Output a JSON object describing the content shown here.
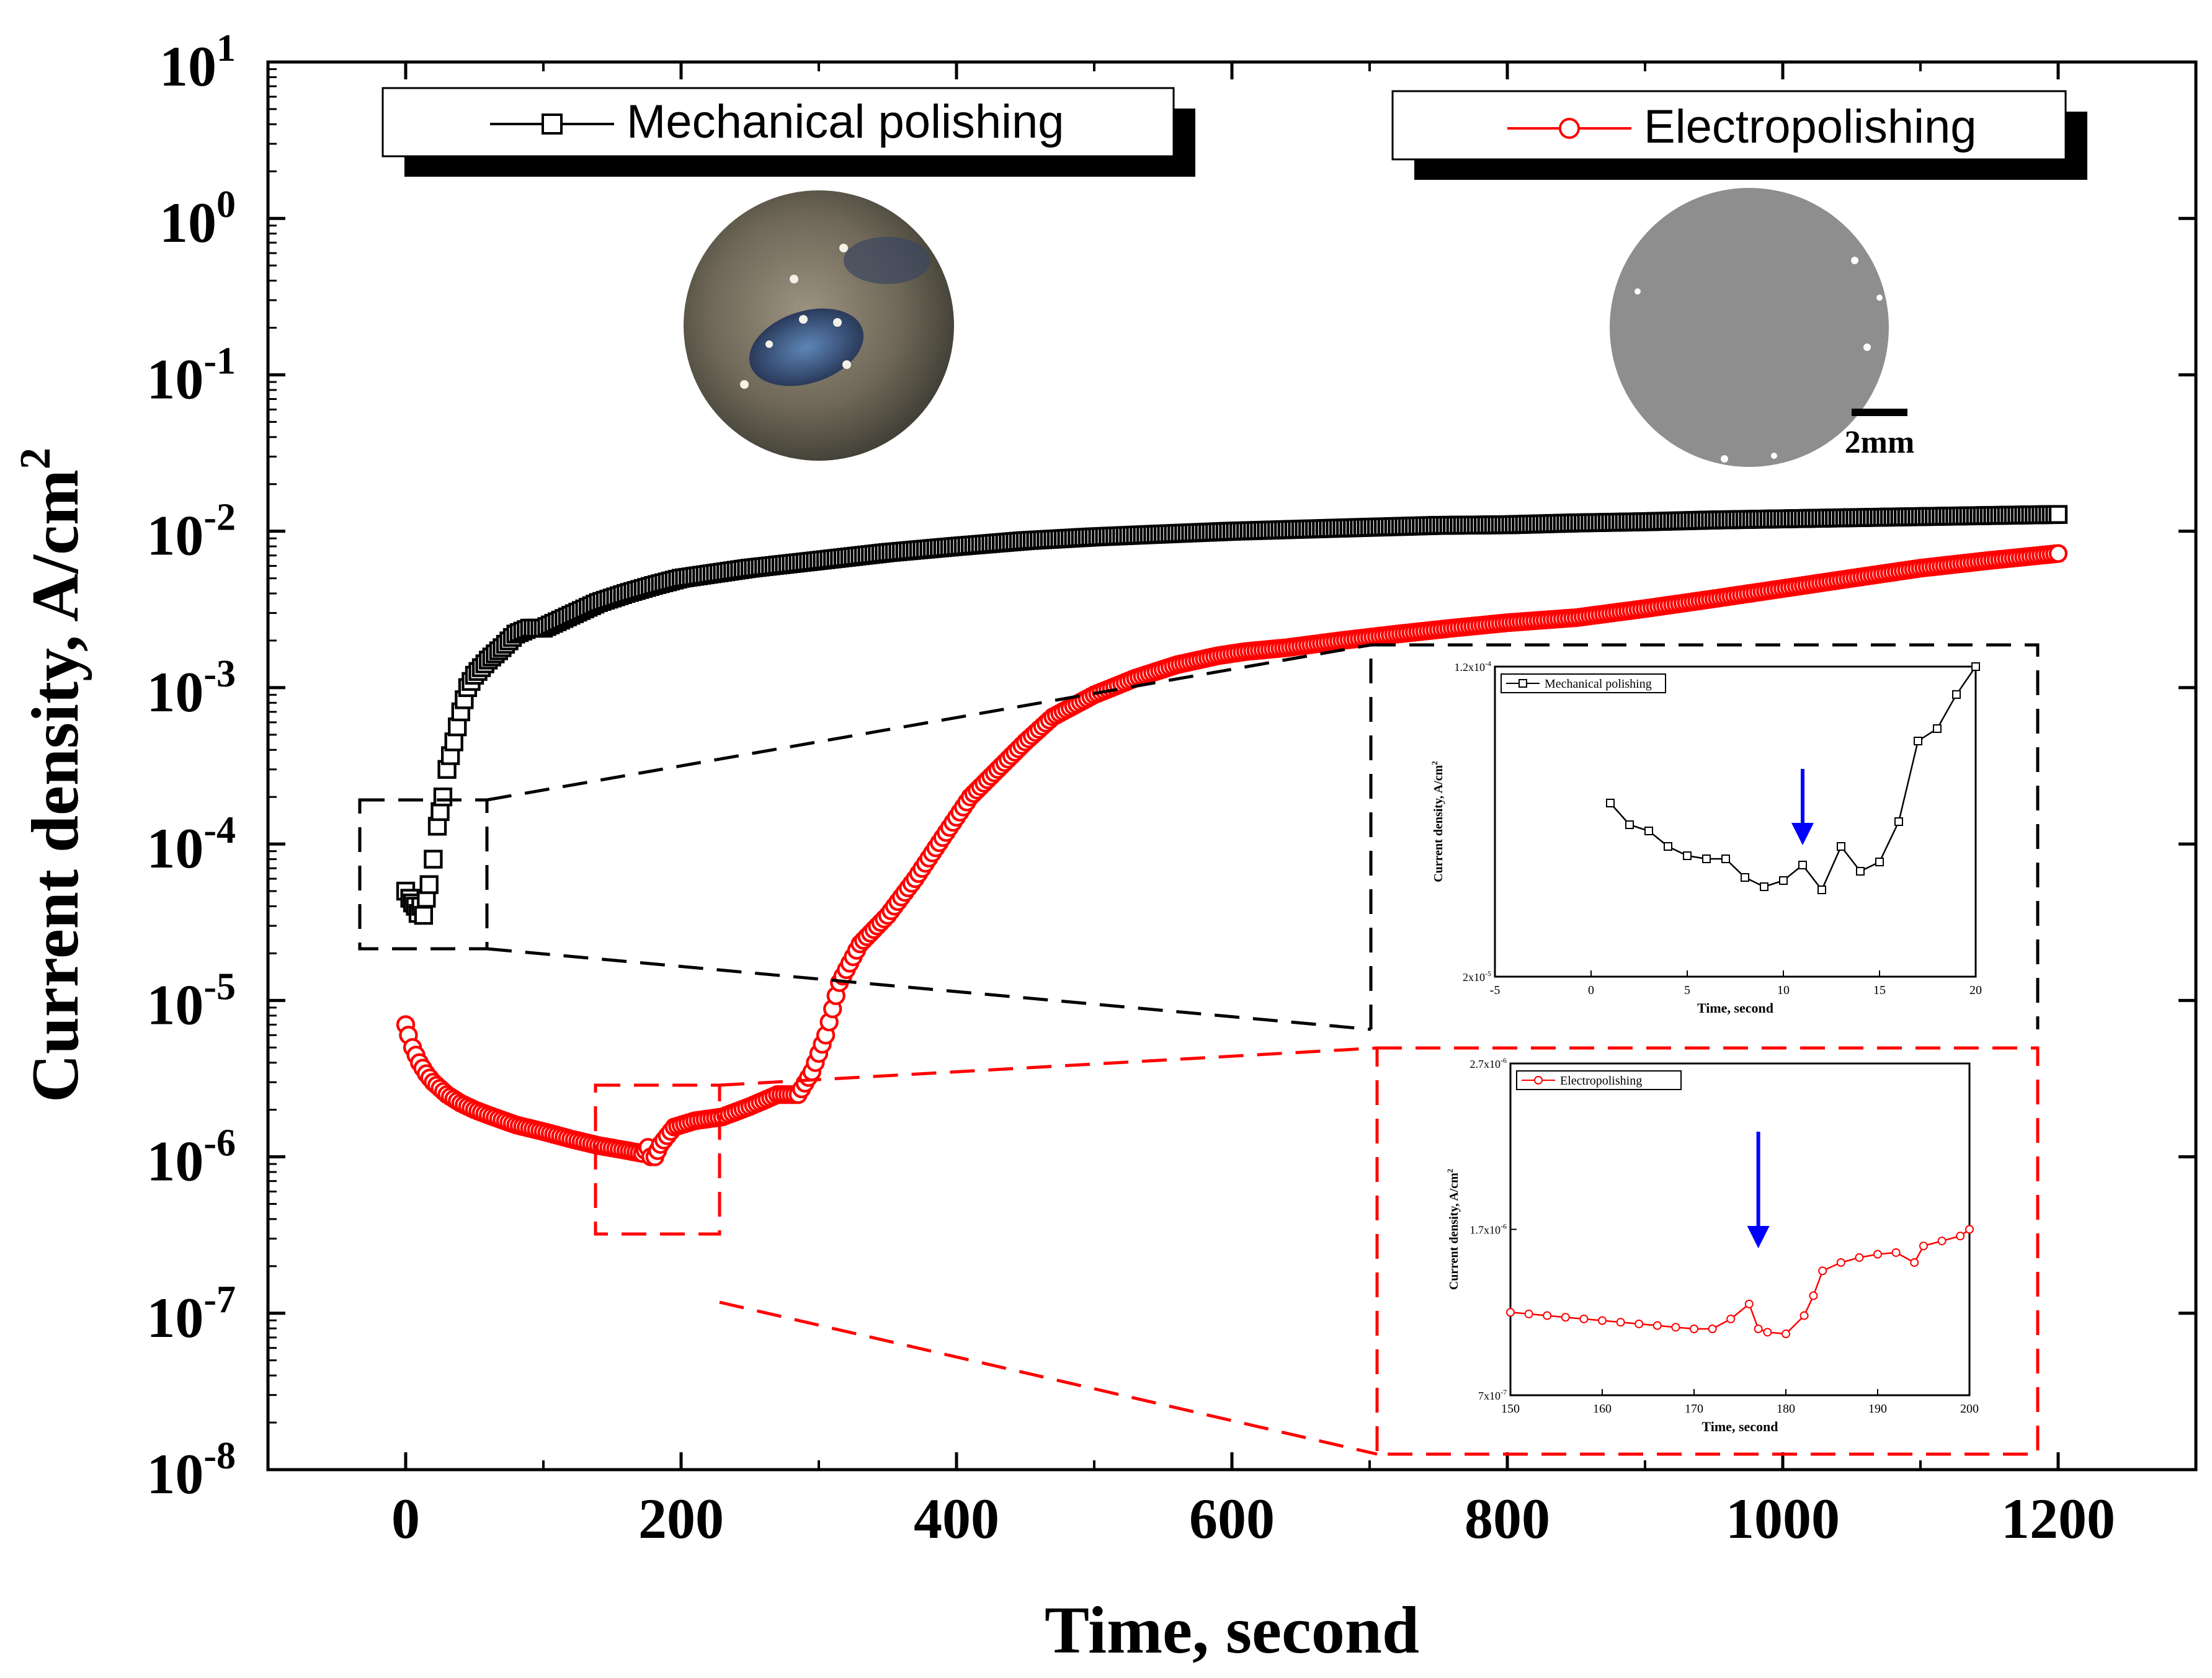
{
  "chart_data": {
    "type": "scatter",
    "xlabel": "Time, second",
    "ylabel": "Current density, A/cm",
    "ylabel_superscript": "2",
    "xlim": [
      -100,
      1300
    ],
    "ylim_log10": [
      -8,
      1
    ],
    "xticks": [
      0,
      200,
      400,
      600,
      800,
      1000,
      1200
    ],
    "xtick_labels": [
      "0",
      "200",
      "400",
      "600",
      "800",
      "1000",
      "1200"
    ],
    "ytick_exponents": [
      1,
      0,
      -1,
      -2,
      -3,
      -4,
      -5,
      -6,
      -7,
      -8
    ],
    "ytick_labels": [
      {
        "base": "10",
        "exp": "1"
      },
      {
        "base": "10",
        "exp": "0"
      },
      {
        "base": "10",
        "exp": "-1"
      },
      {
        "base": "10",
        "exp": "-2"
      },
      {
        "base": "10",
        "exp": "-3"
      },
      {
        "base": "10",
        "exp": "-4"
      },
      {
        "base": "10",
        "exp": "-5"
      },
      {
        "base": "10",
        "exp": "-6"
      },
      {
        "base": "10",
        "exp": "-7"
      },
      {
        "base": "10",
        "exp": "-8"
      }
    ],
    "legend": [
      {
        "label": "Mechanical polishing",
        "color": "#000000",
        "marker": "square"
      },
      {
        "label": "Electropolishing",
        "color": "#ff0000",
        "marker": "circle"
      }
    ],
    "series": [
      {
        "name": "Mechanical polishing",
        "color": "#000000",
        "x": [
          0,
          3,
          5,
          7,
          9,
          11,
          13,
          15,
          17,
          20,
          23,
          27,
          30,
          35,
          40,
          45,
          50,
          60,
          70,
          80,
          90,
          100,
          120,
          140,
          160,
          180,
          200,
          250,
          300,
          350,
          400,
          450,
          500,
          550,
          600,
          650,
          700,
          750,
          800,
          850,
          900,
          950,
          1000,
          1050,
          1100,
          1150,
          1200
        ],
        "y": [
          5e-05,
          4.5e-05,
          4.2e-05,
          4e-05,
          3.6e-05,
          4e-05,
          3.5e-05,
          4.5e-05,
          5.5e-05,
          8e-05,
          0.00013,
          0.0002,
          0.0003,
          0.00045,
          0.0007,
          0.001,
          0.0012,
          0.0015,
          0.0018,
          0.0022,
          0.0024,
          0.0024,
          0.0029,
          0.0035,
          0.004,
          0.0045,
          0.005,
          0.0058,
          0.0065,
          0.0073,
          0.008,
          0.0087,
          0.0092,
          0.0096,
          0.01,
          0.0103,
          0.0106,
          0.0109,
          0.011,
          0.0113,
          0.0115,
          0.0118,
          0.012,
          0.0122,
          0.0124,
          0.0126,
          0.0128
        ]
      },
      {
        "name": "Electropolishing",
        "color": "#ff0000",
        "x": [
          0,
          2,
          5,
          10,
          15,
          20,
          30,
          40,
          50,
          60,
          80,
          100,
          120,
          140,
          160,
          172,
          176,
          178,
          181,
          185,
          195,
          210,
          230,
          250,
          270,
          285,
          295,
          305,
          315,
          330,
          350,
          370,
          390,
          410,
          430,
          450,
          470,
          500,
          530,
          560,
          590,
          610,
          640,
          680,
          720,
          760,
          800,
          850,
          900,
          950,
          1000,
          1050,
          1100,
          1150,
          1200
        ],
        "y": [
          7e-06,
          6e-06,
          5e-06,
          4e-06,
          3.4e-06,
          3e-06,
          2.5e-06,
          2.2e-06,
          2e-06,
          1.85e-06,
          1.6e-06,
          1.45e-06,
          1.3e-06,
          1.18e-06,
          1.1e-06,
          1.05e-06,
          1.15e-06,
          1e-06,
          1e-06,
          1.2e-06,
          1.55e-06,
          1.7e-06,
          1.8e-06,
          2.1e-06,
          2.5e-06,
          2.5e-06,
          3.5e-06,
          6e-06,
          1.3e-05,
          2.3e-05,
          3.5e-05,
          6e-05,
          0.00011,
          0.0002,
          0.0003,
          0.00045,
          0.00065,
          0.0009,
          0.00115,
          0.0014,
          0.0016,
          0.0017,
          0.0018,
          0.002,
          0.0022,
          0.0024,
          0.0026,
          0.0028,
          0.0032,
          0.0037,
          0.0043,
          0.005,
          0.0058,
          0.0065,
          0.0072
        ]
      }
    ],
    "insets": [
      {
        "name": "mechanical-inset",
        "legend": "Mechanical polishing",
        "color": "#000000",
        "marker": "square",
        "xlabel": "Time, second",
        "ylabel": "Current density, A/cm",
        "ylabel_superscript": "2",
        "xlim": [
          -5,
          20
        ],
        "ylim": [
          2e-05,
          0.00012
        ],
        "xticks": [
          -5,
          0,
          5,
          10,
          15,
          20
        ],
        "xtick_labels": [
          "-5",
          "0",
          "5",
          "10",
          "15",
          "20"
        ],
        "ytick_labels": [
          {
            "base": "2x10",
            "exp": "-5",
            "value": 2e-05
          },
          {
            "base": "1.2x10",
            "exp": "-4",
            "value": 0.00012
          }
        ],
        "x": [
          1,
          2,
          3,
          4,
          5,
          6,
          7,
          8,
          9,
          10,
          11,
          12,
          13,
          14,
          15,
          16,
          17,
          18,
          19,
          20
        ],
        "y": [
          7.6e-05,
          6.9e-05,
          6.7e-05,
          6.2e-05,
          5.9e-05,
          5.8e-05,
          5.8e-05,
          5.2e-05,
          4.9e-05,
          5.1e-05,
          5.6e-05,
          4.8e-05,
          6.2e-05,
          5.4e-05,
          5.7e-05,
          7e-05,
          9.6e-05,
          0.0001,
          0.000111,
          0.00012
        ],
        "arrow_x": 11
      },
      {
        "name": "electro-inset",
        "legend": "Electropolishing",
        "color": "#ff0000",
        "marker": "circle",
        "xlabel": "Time, second",
        "ylabel": "Current density, A/cm",
        "ylabel_superscript": "2",
        "xlim": [
          150,
          200
        ],
        "ylim": [
          7e-07,
          2.7e-06
        ],
        "xticks": [
          150,
          160,
          170,
          180,
          190,
          200
        ],
        "xtick_labels": [
          "150",
          "160",
          "170",
          "180",
          "190",
          "200"
        ],
        "ytick_labels": [
          {
            "base": "7x10",
            "exp": "-7",
            "value": 7e-07
          },
          {
            "base": "1.7x10",
            "exp": "-6",
            "value": 1.7e-06
          },
          {
            "base": "2.7x10",
            "exp": "-6",
            "value": 2.7e-06
          }
        ],
        "x": [
          150,
          152,
          154,
          156,
          158,
          160,
          162,
          164,
          166,
          168,
          170,
          172,
          174,
          176,
          177,
          178,
          180,
          182,
          183,
          184,
          186,
          188,
          190,
          192,
          194,
          195,
          197,
          199,
          200
        ],
        "y": [
          1.2e-06,
          1.19e-06,
          1.18e-06,
          1.17e-06,
          1.16e-06,
          1.15e-06,
          1.14e-06,
          1.13e-06,
          1.12e-06,
          1.11e-06,
          1.1e-06,
          1.1e-06,
          1.16e-06,
          1.25e-06,
          1.1e-06,
          1.08e-06,
          1.07e-06,
          1.18e-06,
          1.3e-06,
          1.45e-06,
          1.5e-06,
          1.53e-06,
          1.55e-06,
          1.56e-06,
          1.5e-06,
          1.6e-06,
          1.63e-06,
          1.66e-06,
          1.7e-06
        ],
        "arrow_x": 177
      }
    ],
    "photo_annotations": {
      "scale_bar": "2mm"
    }
  }
}
